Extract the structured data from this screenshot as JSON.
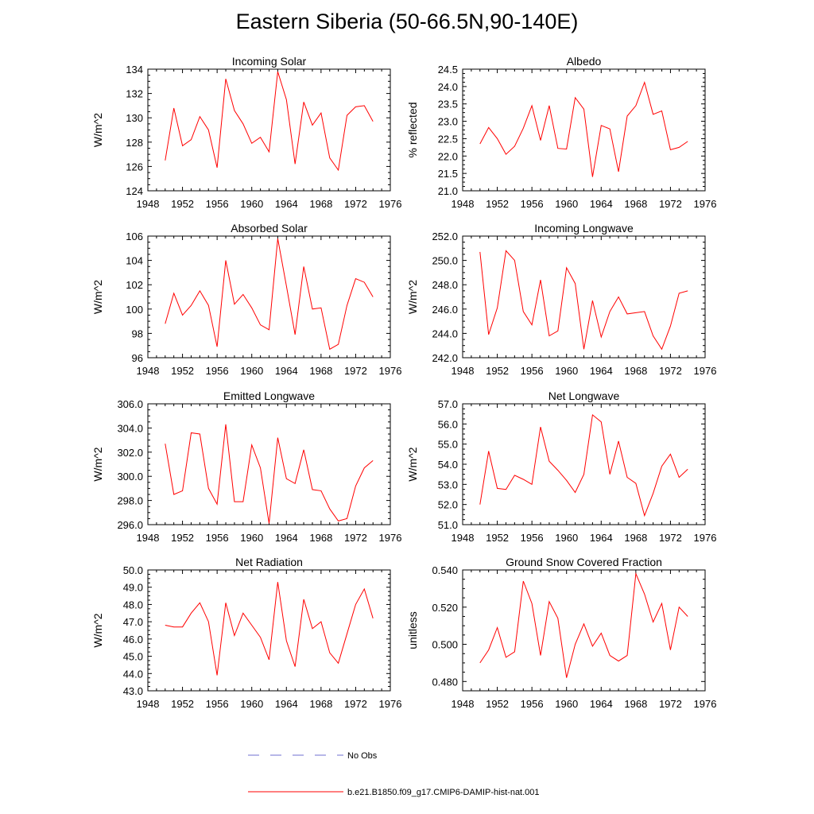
{
  "title": "Eastern Siberia (50-66.5N,90-140E)",
  "line_color": "#ff0000",
  "obs_color": "#6f6fd0",
  "legend": {
    "items": [
      {
        "label": "No Obs",
        "style": "dashed",
        "color": "#6f6fd0"
      },
      {
        "label": "b.e21.B1850.f09_g17.CMIP6-DAMIP-hist-nat.001",
        "style": "solid",
        "color": "#ff0000"
      }
    ]
  },
  "chart_data": [
    {
      "type": "line",
      "title": "Incoming Solar",
      "ylabel": "W/m^2",
      "xlim": [
        1948,
        1976
      ],
      "ylim": [
        124,
        134
      ],
      "xticks": [
        1948,
        1952,
        1956,
        1960,
        1964,
        1968,
        1972,
        1976
      ],
      "yticks": [
        "124",
        "126",
        "128",
        "130",
        "132",
        "134"
      ],
      "x": [
        1950,
        1951,
        1952,
        1953,
        1954,
        1955,
        1956,
        1957,
        1958,
        1959,
        1960,
        1961,
        1962,
        1963,
        1964,
        1965,
        1966,
        1967,
        1968,
        1969,
        1970,
        1971,
        1972,
        1973,
        1974
      ],
      "series": [
        {
          "values": [
            126.5,
            130.8,
            127.7,
            128.2,
            130.1,
            129.0,
            125.9,
            133.2,
            130.6,
            129.5,
            127.9,
            128.4,
            127.2,
            133.8,
            131.5,
            126.2,
            131.3,
            129.4,
            130.4,
            126.7,
            125.7,
            130.2,
            130.9,
            131.0,
            129.7
          ]
        }
      ]
    },
    {
      "type": "line",
      "title": "Albedo",
      "ylabel": "% reflected",
      "xlim": [
        1948,
        1976
      ],
      "ylim": [
        21.0,
        24.5
      ],
      "xticks": [
        1948,
        1952,
        1956,
        1960,
        1964,
        1968,
        1972,
        1976
      ],
      "yticks": [
        "21.0",
        "21.5",
        "22.0",
        "22.5",
        "23.0",
        "23.5",
        "24.0",
        "24.5"
      ],
      "x": [
        1950,
        1951,
        1952,
        1953,
        1954,
        1955,
        1956,
        1957,
        1958,
        1959,
        1960,
        1961,
        1962,
        1963,
        1964,
        1965,
        1966,
        1967,
        1968,
        1969,
        1970,
        1971,
        1972,
        1973,
        1974
      ],
      "series": [
        {
          "values": [
            22.35,
            22.82,
            22.5,
            22.05,
            22.28,
            22.8,
            23.45,
            22.45,
            23.45,
            22.22,
            22.2,
            23.68,
            23.35,
            21.4,
            22.88,
            22.78,
            21.55,
            23.15,
            23.45,
            24.12,
            23.2,
            23.3,
            22.18,
            22.25,
            22.42
          ]
        }
      ]
    },
    {
      "type": "line",
      "title": "Absorbed Solar",
      "ylabel": "W/m^2",
      "xlim": [
        1948,
        1976
      ],
      "ylim": [
        96,
        106
      ],
      "xticks": [
        1948,
        1952,
        1956,
        1960,
        1964,
        1968,
        1972,
        1976
      ],
      "yticks": [
        "96",
        "98",
        "100",
        "102",
        "104",
        "106"
      ],
      "x": [
        1950,
        1951,
        1952,
        1953,
        1954,
        1955,
        1956,
        1957,
        1958,
        1959,
        1960,
        1961,
        1962,
        1963,
        1964,
        1965,
        1966,
        1967,
        1968,
        1969,
        1970,
        1971,
        1972,
        1973,
        1974
      ],
      "series": [
        {
          "values": [
            98.8,
            101.3,
            99.5,
            100.3,
            101.5,
            100.3,
            96.9,
            104.0,
            100.4,
            101.2,
            100.1,
            98.7,
            98.3,
            105.8,
            101.9,
            97.9,
            103.5,
            100.0,
            100.1,
            96.7,
            97.1,
            100.3,
            102.5,
            102.2,
            101.0
          ]
        }
      ]
    },
    {
      "type": "line",
      "title": "Incoming Longwave",
      "ylabel": "W/m^2",
      "xlim": [
        1948,
        1976
      ],
      "ylim": [
        242.0,
        252.0
      ],
      "xticks": [
        1948,
        1952,
        1956,
        1960,
        1964,
        1968,
        1972,
        1976
      ],
      "yticks": [
        "242.0",
        "244.0",
        "246.0",
        "248.0",
        "250.0",
        "252.0"
      ],
      "x": [
        1950,
        1951,
        1952,
        1953,
        1954,
        1955,
        1956,
        1957,
        1958,
        1959,
        1960,
        1961,
        1962,
        1963,
        1964,
        1965,
        1966,
        1967,
        1968,
        1969,
        1970,
        1971,
        1972,
        1973,
        1974
      ],
      "series": [
        {
          "values": [
            250.7,
            243.9,
            246.1,
            250.8,
            250.0,
            245.8,
            244.7,
            248.4,
            243.8,
            244.2,
            249.4,
            248.1,
            242.7,
            246.7,
            243.7,
            245.8,
            247.0,
            245.6,
            245.7,
            245.8,
            243.8,
            242.7,
            244.6,
            247.3,
            247.5
          ]
        }
      ]
    },
    {
      "type": "line",
      "title": "Emitted Longwave",
      "ylabel": "W/m^2",
      "xlim": [
        1948,
        1976
      ],
      "ylim": [
        296.0,
        306.0
      ],
      "xticks": [
        1948,
        1952,
        1956,
        1960,
        1964,
        1968,
        1972,
        1976
      ],
      "yticks": [
        "296.0",
        "298.0",
        "300.0",
        "302.0",
        "304.0",
        "306.0"
      ],
      "x": [
        1950,
        1951,
        1952,
        1953,
        1954,
        1955,
        1956,
        1957,
        1958,
        1959,
        1960,
        1961,
        1962,
        1963,
        1964,
        1965,
        1966,
        1967,
        1968,
        1969,
        1970,
        1971,
        1972,
        1973,
        1974
      ],
      "series": [
        {
          "values": [
            302.7,
            298.5,
            298.8,
            303.6,
            303.5,
            299.0,
            297.7,
            304.3,
            297.9,
            297.9,
            302.6,
            300.7,
            296.1,
            303.2,
            299.8,
            299.4,
            302.2,
            298.9,
            298.8,
            297.3,
            296.3,
            296.5,
            299.2,
            300.7,
            301.3
          ]
        }
      ]
    },
    {
      "type": "line",
      "title": "Net Longwave",
      "ylabel": "W/m^2",
      "xlim": [
        1948,
        1976
      ],
      "ylim": [
        51.0,
        57.0
      ],
      "xticks": [
        1948,
        1952,
        1956,
        1960,
        1964,
        1968,
        1972,
        1976
      ],
      "yticks": [
        "51.0",
        "52.0",
        "53.0",
        "54.0",
        "55.0",
        "56.0",
        "57.0"
      ],
      "x": [
        1950,
        1951,
        1952,
        1953,
        1954,
        1955,
        1956,
        1957,
        1958,
        1959,
        1960,
        1961,
        1962,
        1963,
        1964,
        1965,
        1966,
        1967,
        1968,
        1969,
        1970,
        1971,
        1972,
        1973,
        1974
      ],
      "series": [
        {
          "values": [
            52.0,
            54.65,
            52.8,
            52.75,
            53.45,
            53.25,
            53.0,
            55.85,
            54.15,
            53.7,
            53.2,
            52.6,
            53.5,
            56.45,
            56.1,
            53.5,
            55.15,
            53.35,
            53.05,
            51.45,
            52.55,
            53.9,
            54.5,
            53.35,
            53.75
          ]
        }
      ]
    },
    {
      "type": "line",
      "title": "Net Radiation",
      "ylabel": "W/m^2",
      "xlim": [
        1948,
        1976
      ],
      "ylim": [
        43.0,
        50.0
      ],
      "xticks": [
        1948,
        1952,
        1956,
        1960,
        1964,
        1968,
        1972,
        1976
      ],
      "yticks": [
        "43.0",
        "44.0",
        "45.0",
        "46.0",
        "47.0",
        "48.0",
        "49.0",
        "50.0"
      ],
      "x": [
        1950,
        1951,
        1952,
        1953,
        1954,
        1955,
        1956,
        1957,
        1958,
        1959,
        1960,
        1961,
        1962,
        1963,
        1964,
        1965,
        1966,
        1967,
        1968,
        1969,
        1970,
        1971,
        1972,
        1973,
        1974
      ],
      "series": [
        {
          "values": [
            46.8,
            46.7,
            46.7,
            47.5,
            48.1,
            47.0,
            43.9,
            48.1,
            46.2,
            47.5,
            46.8,
            46.1,
            44.8,
            49.3,
            45.9,
            44.4,
            48.3,
            46.6,
            47.0,
            45.2,
            44.6,
            46.3,
            48.0,
            48.9,
            47.2
          ]
        }
      ]
    },
    {
      "type": "line",
      "title": "Ground Snow Covered Fraction",
      "ylabel": "unitless",
      "xlim": [
        1948,
        1976
      ],
      "ylim": [
        0.475,
        0.54
      ],
      "xticks": [
        1948,
        1952,
        1956,
        1960,
        1964,
        1968,
        1972,
        1976
      ],
      "yticks": [
        "0.480",
        "0.500",
        "0.520",
        "0.540"
      ],
      "x": [
        1950,
        1951,
        1952,
        1953,
        1954,
        1955,
        1956,
        1957,
        1958,
        1959,
        1960,
        1961,
        1962,
        1963,
        1964,
        1965,
        1966,
        1967,
        1968,
        1969,
        1970,
        1971,
        1972,
        1973,
        1974
      ],
      "series": [
        {
          "values": [
            0.49,
            0.497,
            0.509,
            0.493,
            0.496,
            0.534,
            0.522,
            0.494,
            0.523,
            0.514,
            0.482,
            0.5,
            0.511,
            0.499,
            0.506,
            0.494,
            0.491,
            0.494,
            0.538,
            0.527,
            0.512,
            0.522,
            0.497,
            0.52,
            0.515
          ]
        }
      ]
    }
  ]
}
